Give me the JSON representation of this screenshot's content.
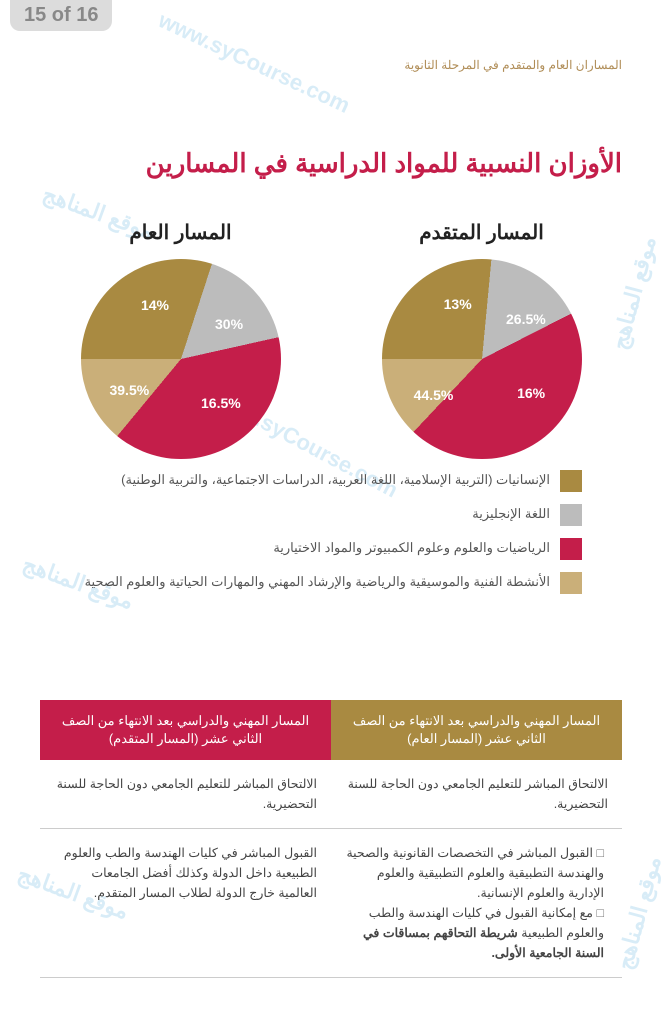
{
  "page_counter": "15 of 16",
  "header_note": "المساران العام والمتقدم في المرحلة الثانوية",
  "main_title": "الأوزان النسبية للمواد الدراسية في المسارين",
  "colors": {
    "dark_gold": "#a98a41",
    "grey": "#bcbcbc",
    "red": "#c41e4a",
    "light_gold": "#caaf79",
    "header_general": "#a98a41",
    "header_advanced": "#c41e4a",
    "watermark": "#b9def2"
  },
  "chart_general": {
    "title": "المسار العام",
    "type": "pie",
    "slices": [
      {
        "label": "30%",
        "value": 30,
        "color": "#a98a41"
      },
      {
        "label": "16.5%",
        "value": 16.5,
        "color": "#bcbcbc"
      },
      {
        "label": "39.5%",
        "value": 39.5,
        "color": "#c41e4a"
      },
      {
        "label": "14%",
        "value": 14,
        "color": "#caaf79"
      }
    ]
  },
  "chart_advanced": {
    "title": "المسار المتقدم",
    "type": "pie",
    "slices": [
      {
        "label": "26.5%",
        "value": 26.5,
        "color": "#a98a41"
      },
      {
        "label": "16%",
        "value": 16,
        "color": "#bcbcbc"
      },
      {
        "label": "44.5%",
        "value": 44.5,
        "color": "#c41e4a"
      },
      {
        "label": "13%",
        "value": 13,
        "color": "#caaf79"
      }
    ]
  },
  "legend": [
    {
      "color": "#a98a41",
      "text": "الإنسانيات (التربية الإسلامية، اللغة العربية، الدراسات الاجتماعية، والتربية الوطنية)"
    },
    {
      "color": "#bcbcbc",
      "text": "اللغة الإنجليزية"
    },
    {
      "color": "#c41e4a",
      "text": "الرياضيات والعلوم وعلوم الكمبيوتر والمواد الاختيارية"
    },
    {
      "color": "#caaf79",
      "text": "الأنشطة الفنية والموسيقية والرياضية والإرشاد المهني والمهارات الحياتية والعلوم الصحية"
    }
  ],
  "table": {
    "header_general": "المسار المهني والدراسي بعد الانتهاء من الصف الثاني عشر (المسار العام)",
    "header_advanced": "المسار المهني والدراسي بعد الانتهاء من الصف الثاني عشر (المسار المتقدم)",
    "row1_general": "الالتحاق المباشر للتعليم الجامعي دون الحاجة للسنة التحضيرية.",
    "row1_advanced": "الالتحاق المباشر للتعليم الجامعي دون الحاجة للسنة التحضيرية.",
    "row2_general_b1": "القبول المباشر في التخصصات القانونية والصحية والهندسة التطبيقية والعلوم التطبيقية والعلوم الإدارية والعلوم الإنسانية.",
    "row2_general_b2_pre": "مع إمكانية القبول في كليات الهندسة والطب والعلوم الطبيعية ",
    "row2_general_b2_strong": "شريطة التحاقهم بمساقات في السنة الجامعية الأولى.",
    "row2_advanced": "القبول المباشر في كليات الهندسة والطب والعلوم الطبيعية داخل الدولة وكذلك أفضل الجامعات العالمية خارج الدولة لطلاب المسار المتقدم."
  },
  "watermarks": {
    "ar": "موقع المناهج",
    "en": "www.syCourse.com"
  }
}
